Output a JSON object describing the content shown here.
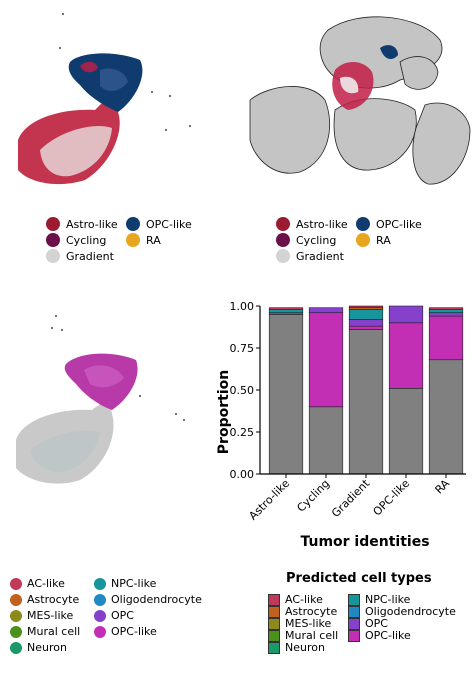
{
  "umap_identity_legend": {
    "items": [
      {
        "label": "Astro-like",
        "color": "#9b1b30"
      },
      {
        "label": "OPC-like",
        "color": "#0f3b6e"
      },
      {
        "label": "Cycling",
        "color": "#6b1048"
      },
      {
        "label": "RA",
        "color": "#e8a51e"
      },
      {
        "label": "Gradient",
        "color": "#d3d3d3"
      }
    ]
  },
  "spatial_identity_legend": {
    "items": [
      {
        "label": "Astro-like",
        "color": "#9b1b30"
      },
      {
        "label": "OPC-like",
        "color": "#0f3b6e"
      },
      {
        "label": "Cycling",
        "color": "#6b1048"
      },
      {
        "label": "RA",
        "color": "#e8a51e"
      },
      {
        "label": "Gradient",
        "color": "#d3d3d3"
      }
    ]
  },
  "celltype_legend_left": {
    "items": [
      {
        "label": "AC-like",
        "color": "#c0395a"
      },
      {
        "label": "NPC-like",
        "color": "#16959c"
      },
      {
        "label": "Astrocyte",
        "color": "#c0621e"
      },
      {
        "label": "Oligodendrocyte",
        "color": "#2089c4"
      },
      {
        "label": "MES-like",
        "color": "#8c8a1c"
      },
      {
        "label": "OPC",
        "color": "#8540cc"
      },
      {
        "label": "Mural cell",
        "color": "#4b8f1c"
      },
      {
        "label": "OPC-like",
        "color": "#c22fb5"
      },
      {
        "label": "Neuron",
        "color": "#1a9a6a"
      }
    ]
  },
  "chart_data": {
    "type": "bar",
    "stacked": true,
    "xlabel": "Tumor identities",
    "ylabel": "Proportion",
    "ylim": [
      0,
      1
    ],
    "yticks": [
      "0.00",
      "0.25",
      "0.50",
      "0.75",
      "1.00"
    ],
    "categories": [
      "Astro-like",
      "Cycling",
      "Gradient",
      "OPC-like",
      "RA"
    ],
    "series": [
      {
        "name": "AC-like",
        "color": "#c0395a",
        "values": [
          0.01,
          0.0,
          0.01,
          0.0,
          0.01
        ]
      },
      {
        "name": "Astrocyte",
        "color": "#c0621e",
        "values": [
          0.0,
          0.0,
          0.01,
          0.0,
          0.0
        ]
      },
      {
        "name": "MES-like",
        "color": "#8c8a1c",
        "values": [
          0.0,
          0.0,
          0.0,
          0.0,
          0.0
        ]
      },
      {
        "name": "Mural cell",
        "color": "#4b8f1c",
        "values": [
          0.0,
          0.0,
          0.0,
          0.0,
          0.0
        ]
      },
      {
        "name": "Neuron",
        "color": "#1a9a6a",
        "values": [
          0.0,
          0.0,
          0.0,
          0.0,
          0.0
        ]
      },
      {
        "name": "NPC-like",
        "color": "#16959c",
        "values": [
          0.02,
          0.0,
          0.06,
          0.0,
          0.02
        ]
      },
      {
        "name": "Oligodendrocyte",
        "color": "#2089c4",
        "values": [
          0.0,
          0.0,
          0.0,
          0.0,
          0.0
        ]
      },
      {
        "name": "OPC",
        "color": "#8540cc",
        "values": [
          0.01,
          0.03,
          0.04,
          0.1,
          0.02
        ]
      },
      {
        "name": "OPC-like",
        "color": "#c22fb5",
        "values": [
          0.0,
          0.56,
          0.02,
          0.39,
          0.26
        ]
      },
      {
        "name": "",
        "color": "#808080",
        "values": [
          0.95,
          0.4,
          0.86,
          0.51,
          0.68
        ]
      }
    ],
    "legend": {
      "title": "Predicted cell types",
      "position": "bottom-right",
      "items": [
        "AC-like",
        "NPC-like",
        "Astrocyte",
        "Oligodendrocyte",
        "MES-like",
        "OPC",
        "Mural cell",
        "OPC-like",
        "Neuron"
      ]
    }
  }
}
